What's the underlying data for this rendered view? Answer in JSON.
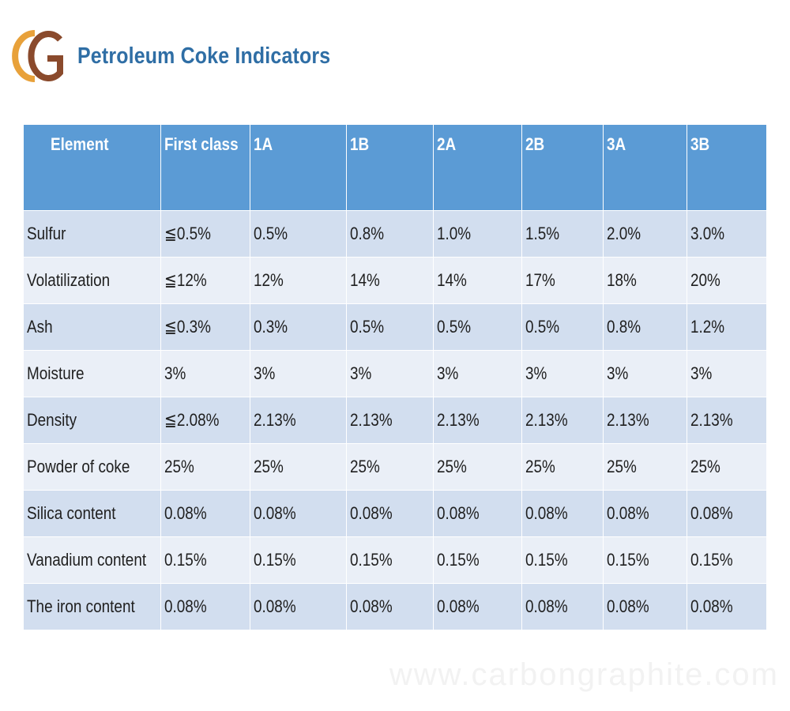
{
  "header": {
    "logo_text": "CG",
    "title": "Petroleum Coke Indicators"
  },
  "table": {
    "columns": [
      "Element",
      "First class",
      "1A",
      "1B",
      "2A",
      "2B",
      "3A",
      "3B"
    ],
    "rows": [
      [
        "Sulfur",
        "≦0.5%",
        "0.5%",
        "0.8%",
        "1.0%",
        "1.5%",
        "2.0%",
        "3.0%"
      ],
      [
        "Volatilization",
        "≦12%",
        "12%",
        "14%",
        "14%",
        "17%",
        "18%",
        "20%"
      ],
      [
        "Ash",
        "≦0.3%",
        "0.3%",
        "0.5%",
        "0.5%",
        "0.5%",
        "0.8%",
        "1.2%"
      ],
      [
        "Moisture",
        "3%",
        "3%",
        "3%",
        "3%",
        "3%",
        "3%",
        "3%"
      ],
      [
        "Density",
        "≦2.08%",
        "2.13%",
        " 2.13%",
        "2.13%",
        "2.13%",
        "2.13%",
        "2.13%"
      ],
      [
        "Powder of coke",
        "25%",
        "25%",
        "25%",
        "25%",
        "25%",
        "25%",
        "25%"
      ],
      [
        "Silica content",
        "0.08%",
        "0.08%",
        "0.08%",
        "0.08%",
        "0.08%",
        "0.08%",
        "0.08%"
      ],
      [
        "Vanadium content",
        "0.15%",
        "0.15%",
        "0.15%",
        "0.15%",
        "0.15%",
        "0.15%",
        "0.15%"
      ],
      [
        "The iron content",
        "0.08%",
        "0.08%",
        "0.08%",
        "0.08%",
        "0.08%",
        "0.08%",
        "0.08%"
      ]
    ]
  },
  "watermark": "www.carbongraphite.com",
  "colors": {
    "header_bg": "#5b9bd5",
    "row_odd": "#d2deef",
    "row_even": "#eaeff7",
    "title": "#2f6ea5",
    "logo_c": "#e8a13a",
    "logo_g": "#8a4a2c"
  }
}
